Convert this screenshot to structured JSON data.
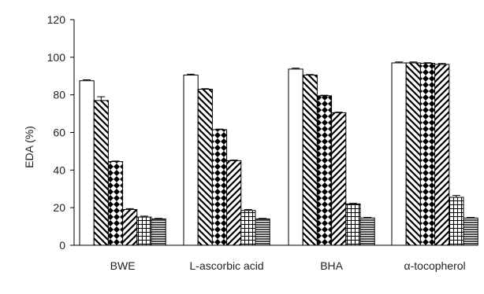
{
  "chart_data": {
    "type": "bar",
    "title": "",
    "xlabel": "",
    "ylabel": "EDA (%)",
    "ylim": [
      0,
      120
    ],
    "yticks": [
      0,
      20,
      40,
      60,
      80,
      100,
      120
    ],
    "categories": [
      "BWE",
      "L-ascorbic acid",
      "BHA",
      "α-tocopherol"
    ],
    "grid": false,
    "legend": "none",
    "series": [
      {
        "pattern": "plain",
        "values": [
          87.5,
          90.5,
          93.7,
          97.0
        ],
        "errors": [
          0.5,
          0.5,
          0.5,
          0.5
        ]
      },
      {
        "pattern": "diag-down",
        "values": [
          77.0,
          83.0,
          90.5,
          97.0
        ],
        "errors": [
          2.0,
          0.3,
          0.3,
          0.5
        ]
      },
      {
        "pattern": "diamonds",
        "values": [
          44.5,
          61.5,
          79.5,
          96.8
        ],
        "errors": [
          0.3,
          0.3,
          0.3,
          0.3
        ]
      },
      {
        "pattern": "diag-up",
        "values": [
          19.0,
          45.0,
          70.5,
          96.2
        ],
        "errors": [
          0.5,
          0.3,
          0.3,
          0.5
        ]
      },
      {
        "pattern": "grid",
        "values": [
          15.0,
          18.5,
          22.0,
          25.5
        ],
        "errors": [
          0.5,
          0.5,
          0.3,
          1.0
        ]
      },
      {
        "pattern": "horizontal",
        "values": [
          14.0,
          14.0,
          14.5,
          14.5
        ],
        "errors": [
          0.3,
          0.3,
          0.3,
          0.3
        ]
      }
    ]
  }
}
